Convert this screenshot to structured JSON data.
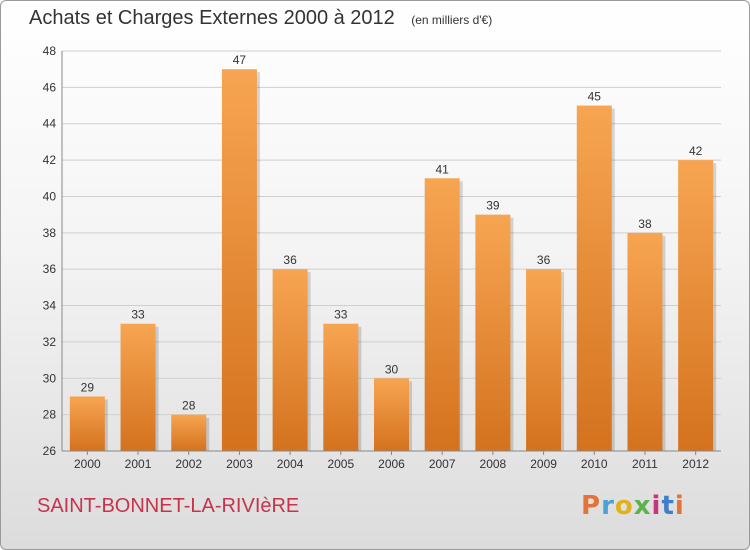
{
  "title": "Achats et Charges Externes 2000 à 2012",
  "unit_note": "(en milliers d'€)",
  "place": "SAINT-BONNET-LA-RIVIèRE",
  "brand": "Proxiti",
  "colors": {
    "bar_light": "#f7a552",
    "bar_dark": "#d4721e",
    "place_text": "#c8324b",
    "grid": "#cfcfcf"
  },
  "chart_data": {
    "type": "bar",
    "title": "Achats et Charges Externes 2000 à 2012",
    "categories": [
      "2000",
      "2001",
      "2002",
      "2003",
      "2004",
      "2005",
      "2006",
      "2007",
      "2008",
      "2009",
      "2010",
      "2011",
      "2012"
    ],
    "values": [
      29,
      33,
      28,
      47,
      36,
      33,
      30,
      41,
      39,
      36,
      45,
      38,
      42
    ],
    "xlabel": "",
    "ylabel": "",
    "ylim": [
      26,
      48
    ],
    "yticks": [
      26,
      28,
      30,
      32,
      34,
      36,
      38,
      40,
      42,
      44,
      46,
      48
    ],
    "grid": true,
    "data_labels": true
  }
}
